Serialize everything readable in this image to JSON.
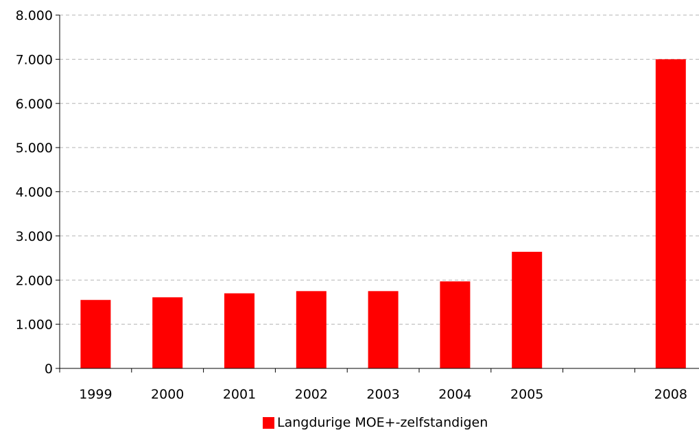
{
  "chart_data": {
    "type": "bar",
    "categories": [
      "1999",
      "2000",
      "2001",
      "2002",
      "2003",
      "2004",
      "2005",
      "",
      "2008"
    ],
    "series": [
      {
        "name": "Langdurige MOE+-zelfstandigen",
        "values": [
          1550,
          1610,
          1700,
          1750,
          1750,
          1970,
          2640,
          null,
          7000
        ],
        "color": "#ff0000"
      }
    ],
    "y_ticks": [
      "0",
      "1.000",
      "2.000",
      "3.000",
      "4.000",
      "5.000",
      "6.000",
      "7.000",
      "8.000"
    ],
    "ylim": [
      0,
      8000
    ],
    "y_step": 1000,
    "grid": "horizontal dashed",
    "legend_position": "bottom-center",
    "title": "",
    "xlabel": "",
    "ylabel": ""
  }
}
